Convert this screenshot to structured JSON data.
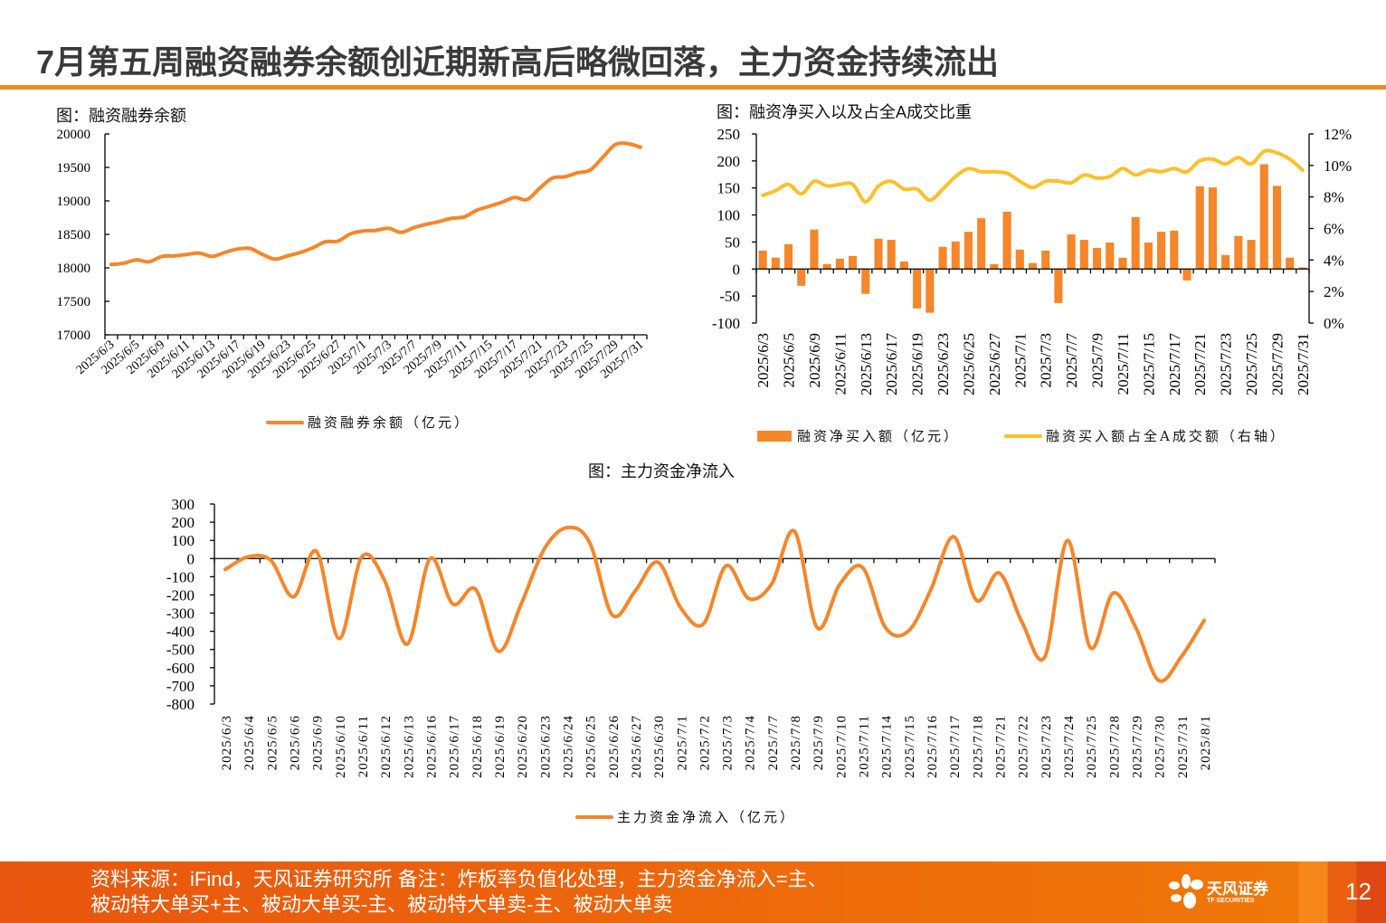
{
  "header": {
    "title": "7月第五周融资融券余额创近期新高后略微回落，主力资金持续流出"
  },
  "colors": {
    "accent": "#f08a24",
    "series_orange": "#f5862a",
    "series_yellow": "#fcc02a",
    "footer": "#ee6b0a"
  },
  "footer": {
    "source_text": "资料来源：iFind，天风证券研究所 备注：炸板率负值化处理，主力资金净流入=主、被动特大单买+主、被动大单买-主、被动特大单卖-主、被动大单卖",
    "logo_text_cn": "天风证券",
    "logo_text_en": "TF SECURITIES",
    "page_number": "12"
  },
  "chart_data": [
    {
      "type": "line",
      "title": "图：融资融券余额",
      "categories": [
        "2025/6/3",
        "2025/6/4",
        "2025/6/5",
        "2025/6/6",
        "2025/6/9",
        "2025/6/10",
        "2025/6/11",
        "2025/6/12",
        "2025/6/13",
        "2025/6/16",
        "2025/6/17",
        "2025/6/18",
        "2025/6/19",
        "2025/6/20",
        "2025/6/23",
        "2025/6/24",
        "2025/6/25",
        "2025/6/26",
        "2025/6/27",
        "2025/6/30",
        "2025/7/1",
        "2025/7/2",
        "2025/7/3",
        "2025/7/4",
        "2025/7/7",
        "2025/7/8",
        "2025/7/9",
        "2025/7/10",
        "2025/7/11",
        "2025/7/14",
        "2025/7/15",
        "2025/7/16",
        "2025/7/17",
        "2025/7/18",
        "2025/7/21",
        "2025/7/22",
        "2025/7/23",
        "2025/7/24",
        "2025/7/25",
        "2025/7/28",
        "2025/7/29",
        "2025/7/30",
        "2025/7/31"
      ],
      "tick_labels": [
        "2025/6/3",
        "2025/6/5",
        "2025/6/9",
        "2025/6/11",
        "2025/6/13",
        "2025/6/17",
        "2025/6/19",
        "2025/6/23",
        "2025/6/25",
        "2025/6/27",
        "2025/7/1",
        "2025/7/3",
        "2025/7/7",
        "2025/7/9",
        "2025/7/11",
        "2025/7/15",
        "2025/7/17",
        "2025/7/21",
        "2025/7/23",
        "2025/7/25",
        "2025/7/29",
        "2025/7/31"
      ],
      "series": [
        {
          "name": "融资融券余额（亿元）",
          "values": [
            18050,
            18070,
            18120,
            18090,
            18170,
            18180,
            18200,
            18220,
            18170,
            18230,
            18280,
            18290,
            18200,
            18130,
            18180,
            18230,
            18300,
            18390,
            18400,
            18510,
            18550,
            18560,
            18590,
            18530,
            18600,
            18650,
            18690,
            18740,
            18760,
            18860,
            18920,
            18980,
            19050,
            19020,
            19190,
            19340,
            19360,
            19420,
            19460,
            19650,
            19840,
            19855,
            19800
          ]
        }
      ],
      "ylim": [
        17000,
        20000
      ],
      "yticks": [
        "17000",
        "17500",
        "18000",
        "18500",
        "19000",
        "19500",
        "20000"
      ],
      "legend": "bottom"
    },
    {
      "type": "bar+line",
      "title": "图：融资净买入以及占全A成交比重",
      "categories": [
        "2025/6/3",
        "2025/6/4",
        "2025/6/5",
        "2025/6/6",
        "2025/6/9",
        "2025/6/10",
        "2025/6/11",
        "2025/6/12",
        "2025/6/13",
        "2025/6/16",
        "2025/6/17",
        "2025/6/18",
        "2025/6/19",
        "2025/6/20",
        "2025/6/23",
        "2025/6/24",
        "2025/6/25",
        "2025/6/26",
        "2025/6/27",
        "2025/6/30",
        "2025/7/1",
        "2025/7/2",
        "2025/7/3",
        "2025/7/4",
        "2025/7/7",
        "2025/7/8",
        "2025/7/9",
        "2025/7/10",
        "2025/7/11",
        "2025/7/14",
        "2025/7/15",
        "2025/7/16",
        "2025/7/17",
        "2025/7/18",
        "2025/7/21",
        "2025/7/22",
        "2025/7/23",
        "2025/7/24",
        "2025/7/25",
        "2025/7/28",
        "2025/7/29",
        "2025/7/30",
        "2025/7/31"
      ],
      "tick_labels": [
        "2025/6/3",
        "2025/6/5",
        "2025/6/9",
        "2025/6/11",
        "2025/6/13",
        "2025/6/17",
        "2025/6/19",
        "2025/6/23",
        "2025/6/25",
        "2025/6/27",
        "2025/7/1",
        "2025/7/3",
        "2025/7/7",
        "2025/7/9",
        "2025/7/11",
        "2025/7/15",
        "2025/7/17",
        "2025/7/21",
        "2025/7/23",
        "2025/7/25",
        "2025/7/29",
        "2025/7/31"
      ],
      "series": [
        {
          "name": "融资净买入额（亿元）",
          "kind": "bar",
          "axis": "left",
          "values": [
            34,
            21,
            46,
            -31,
            73,
            9,
            19,
            24,
            -46,
            56,
            54,
            14,
            -73,
            -81,
            41,
            51,
            69,
            94,
            9,
            106,
            36,
            11,
            34,
            -63,
            64,
            54,
            39,
            49,
            21,
            96,
            49,
            69,
            71,
            -21,
            153,
            151,
            26,
            61,
            54,
            194,
            154,
            21,
            3
          ]
        },
        {
          "name": "融资买入额占全A成交额（右轴）",
          "kind": "line",
          "axis": "right",
          "values": [
            8.1,
            8.4,
            8.8,
            8.2,
            9.0,
            8.7,
            8.8,
            8.8,
            7.7,
            8.7,
            9.0,
            8.5,
            8.5,
            7.8,
            8.5,
            9.3,
            9.8,
            9.6,
            9.6,
            9.5,
            9.0,
            8.6,
            9.0,
            9.0,
            8.9,
            9.4,
            9.2,
            9.3,
            9.8,
            9.4,
            9.7,
            9.6,
            9.8,
            9.6,
            10.3,
            10.4,
            10.1,
            10.5,
            10.1,
            10.9,
            10.8,
            10.4,
            9.7
          ]
        }
      ],
      "ylim": [
        -100,
        250
      ],
      "yticks": [
        "-100",
        "-50",
        "0",
        "50",
        "100",
        "150",
        "200",
        "250"
      ],
      "y2lim": [
        0,
        12
      ],
      "y2ticks": [
        "0%",
        "2%",
        "4%",
        "6%",
        "8%",
        "10%",
        "12%"
      ],
      "legend": "bottom"
    },
    {
      "type": "line",
      "title": "图：主力资金净流入",
      "categories": [
        "2025/6/3",
        "2025/6/4",
        "2025/6/5",
        "2025/6/6",
        "2025/6/9",
        "2025/6/10",
        "2025/6/11",
        "2025/6/12",
        "2025/6/13",
        "2025/6/16",
        "2025/6/17",
        "2025/6/18",
        "2025/6/19",
        "2025/6/20",
        "2025/6/23",
        "2025/6/24",
        "2025/6/25",
        "2025/6/26",
        "2025/6/27",
        "2025/6/30",
        "2025/7/1",
        "2025/7/2",
        "2025/7/3",
        "2025/7/4",
        "2025/7/7",
        "2025/7/8",
        "2025/7/9",
        "2025/7/10",
        "2025/7/11",
        "2025/7/14",
        "2025/7/15",
        "2025/7/16",
        "2025/7/17",
        "2025/7/18",
        "2025/7/21",
        "2025/7/22",
        "2025/7/23",
        "2025/7/24",
        "2025/7/25",
        "2025/7/28",
        "2025/7/29",
        "2025/7/30",
        "2025/7/31",
        "2025/8/1"
      ],
      "series": [
        {
          "name": "主力资金净流入（亿元）",
          "values": [
            -60,
            10,
            -10,
            -210,
            40,
            -440,
            10,
            -120,
            -470,
            0,
            -250,
            -170,
            -510,
            -250,
            50,
            170,
            90,
            -310,
            -180,
            -20,
            -270,
            -360,
            -40,
            -220,
            -140,
            150,
            -380,
            -140,
            -50,
            -380,
            -400,
            -170,
            120,
            -230,
            -80,
            -350,
            -540,
            100,
            -490,
            -190,
            -380,
            -670,
            -540,
            -340
          ]
        }
      ],
      "ylim": [
        -800,
        300
      ],
      "yticks": [
        "-800",
        "-700",
        "-600",
        "-500",
        "-400",
        "-300",
        "-200",
        "-100",
        "0",
        "100",
        "200",
        "300"
      ],
      "legend": "bottom"
    }
  ]
}
